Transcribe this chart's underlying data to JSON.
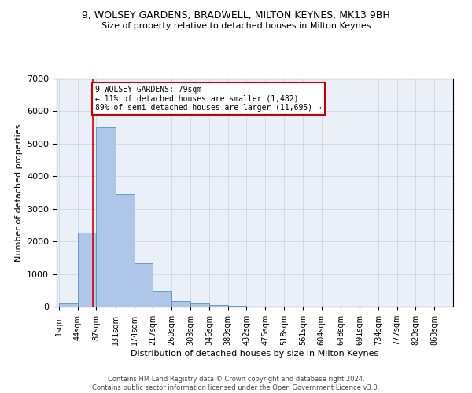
{
  "title": "9, WOLSEY GARDENS, BRADWELL, MILTON KEYNES, MK13 9BH",
  "subtitle": "Size of property relative to detached houses in Milton Keynes",
  "xlabel": "Distribution of detached houses by size in Milton Keynes",
  "ylabel": "Number of detached properties",
  "footer_line1": "Contains HM Land Registry data © Crown copyright and database right 2024.",
  "footer_line2": "Contains public sector information licensed under the Open Government Licence v3.0.",
  "bin_edges": [
    1,
    44,
    87,
    131,
    174,
    217,
    260,
    303,
    346,
    389,
    432,
    475,
    518,
    561,
    604,
    648,
    691,
    734,
    777,
    820,
    863
  ],
  "bin_labels": [
    "1sqm",
    "44sqm",
    "87sqm",
    "131sqm",
    "174sqm",
    "217sqm",
    "260sqm",
    "303sqm",
    "346sqm",
    "389sqm",
    "432sqm",
    "475sqm",
    "518sqm",
    "561sqm",
    "604sqm",
    "648sqm",
    "691sqm",
    "734sqm",
    "777sqm",
    "820sqm",
    "863sqm"
  ],
  "bar_heights": [
    100,
    2280,
    5500,
    3450,
    1320,
    480,
    160,
    90,
    55,
    30,
    8,
    3,
    1,
    0,
    0,
    0,
    0,
    0,
    0,
    0
  ],
  "bar_color": "#aec6e8",
  "bar_edge_color": "#5a8fc4",
  "grid_color": "#c8d0e0",
  "background_color": "#eaeff8",
  "property_sqm": 79,
  "red_line_color": "#cc0000",
  "annotation_line1": "9 WOLSEY GARDENS: 79sqm",
  "annotation_line2": "← 11% of detached houses are smaller (1,482)",
  "annotation_line3": "89% of semi-detached houses are larger (11,695) →",
  "annotation_box_facecolor": "#ffffff",
  "annotation_border_color": "#cc0000",
  "ylim": [
    0,
    7000
  ],
  "yticks": [
    0,
    1000,
    2000,
    3000,
    4000,
    5000,
    6000,
    7000
  ]
}
